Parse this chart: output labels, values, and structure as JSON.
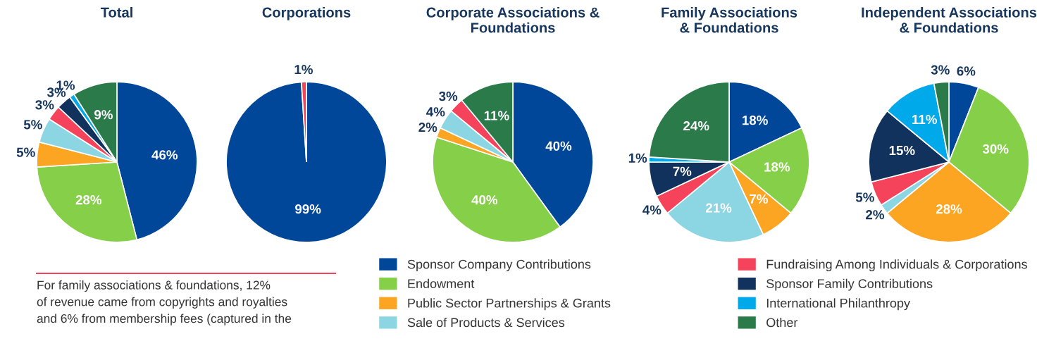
{
  "chart_data": [
    {
      "type": "pie",
      "title": "Total",
      "categories": [
        "Sponsor Company Contributions",
        "Endowment",
        "Public Sector Partnerships & Grants",
        "Sale of Products & Services",
        "Fundraising Among Individuals & Corporations",
        "Sponsor Family Contributions",
        "International Philanthropy",
        "Other"
      ],
      "values": [
        46,
        28,
        5,
        5,
        3,
        3,
        1,
        9
      ],
      "value_labels": [
        "46%",
        "28%",
        "5%",
        "5%",
        "3%",
        "3%",
        "1%",
        "9%"
      ],
      "colors": [
        "#00479a",
        "#86cf48",
        "#fca522",
        "#8cd6e3",
        "#f5435b",
        "#10325c",
        "#00a9ea",
        "#2b7a4a"
      ],
      "legend": "bottom",
      "annotations": [
        "For family associations & foundations, 12%\nof revenue came from copyrights and royalties\nand 6% from membership fees (captured in the"
      ]
    },
    {
      "type": "pie",
      "title": "Corporations",
      "categories": [
        null,
        null
      ],
      "values": [
        99,
        1
      ],
      "value_labels": [
        "99%",
        "1%"
      ],
      "colors": [
        "#00479a",
        "#f5435b"
      ]
    },
    {
      "type": "pie",
      "title": "Corporate Associations &\nFoundations",
      "categories": [
        null,
        null,
        null,
        null,
        null,
        null
      ],
      "values": [
        40,
        40,
        2,
        4,
        3,
        11
      ],
      "value_labels": [
        "40%",
        "40%",
        "2%",
        "4%",
        "3%",
        "11%"
      ],
      "colors": [
        "#00479a",
        "#86cf48",
        "#fca522",
        "#8cd6e3",
        "#f5435b",
        "#2b7a4a"
      ]
    },
    {
      "type": "pie",
      "title": "Family Associations\n& Foundations",
      "categories": [
        null,
        null,
        null,
        null,
        null,
        null,
        null,
        null
      ],
      "values": [
        18,
        18,
        7,
        21,
        4,
        7,
        1,
        24
      ],
      "value_labels": [
        "18%",
        "18%",
        "7%",
        "21%",
        "4%",
        "7%",
        "1%",
        "24%"
      ],
      "colors": [
        "#00479a",
        "#86cf48",
        "#fca522",
        "#8cd6e3",
        "#f5435b",
        "#10325c",
        "#00a9ea",
        "#2b7a4a"
      ]
    },
    {
      "type": "pie",
      "title": "Independent Associations\n& Foundations",
      "categories": [
        null,
        null,
        null,
        null,
        null,
        null,
        null,
        null
      ],
      "values": [
        6,
        30,
        28,
        2,
        5,
        15,
        11,
        3
      ],
      "value_labels": [
        "6%",
        "30%",
        "28%",
        "2%",
        "5%",
        "15%",
        "11%",
        "3%"
      ],
      "colors": [
        "#00479a",
        "#86cf48",
        "#fca522",
        "#8cd6e3",
        "#f5435b",
        "#10325c",
        "#00a9ea",
        "#2b7a4a"
      ]
    }
  ]
}
